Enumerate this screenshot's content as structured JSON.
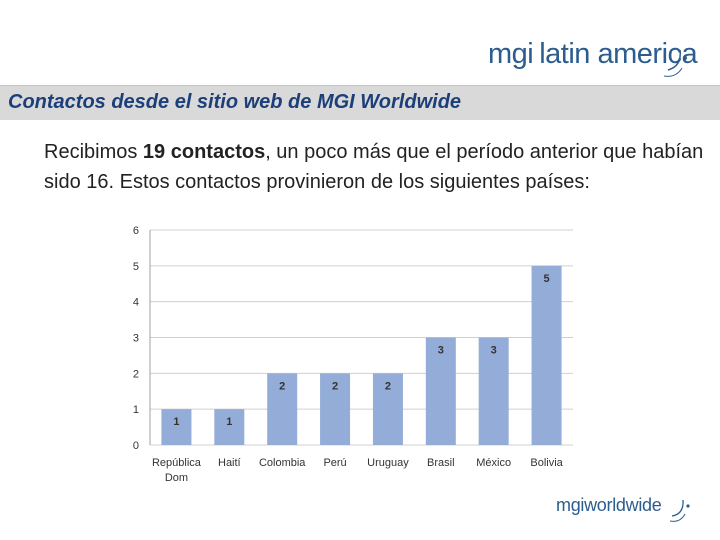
{
  "header": {
    "logo_top_mgi": "mgi",
    "logo_top_rest": "latin america",
    "title": "Contactos desde el sitio web de MGI Worldwide"
  },
  "body": {
    "text_before": "Recibimos ",
    "text_bold": "19 contactos",
    "text_after": ", un poco más que el período anterior que habían sido 16. Estos contactos provinieron de los siguientes países:"
  },
  "footer": {
    "logo_bottom": "mgiworldwide"
  },
  "colors": {
    "bar": "#94acd8",
    "grid": "#d0d0d0",
    "brand": "#2c5d8f",
    "title_bar": "#d9d9d9"
  },
  "chart_data": {
    "type": "bar",
    "categories": [
      "República Dom",
      "Haití",
      "Colombia",
      "Perú",
      "Uruguay",
      "Brasil",
      "México",
      "Bolivia"
    ],
    "category_lines": [
      [
        "República",
        "Dom"
      ],
      [
        "Haití"
      ],
      [
        "Colombia"
      ],
      [
        "Perú"
      ],
      [
        "Uruguay"
      ],
      [
        "Brasil"
      ],
      [
        "México"
      ],
      [
        "Bolivia"
      ]
    ],
    "values": [
      1,
      1,
      2,
      2,
      2,
      3,
      3,
      5
    ],
    "data_labels": [
      "1",
      "1",
      "2",
      "2",
      "2",
      "3",
      "3",
      "5"
    ],
    "yticks": [
      "0",
      "1",
      "2",
      "3",
      "4",
      "5",
      "6"
    ],
    "ylim": [
      0,
      6
    ],
    "grid": true,
    "legend": "none"
  }
}
